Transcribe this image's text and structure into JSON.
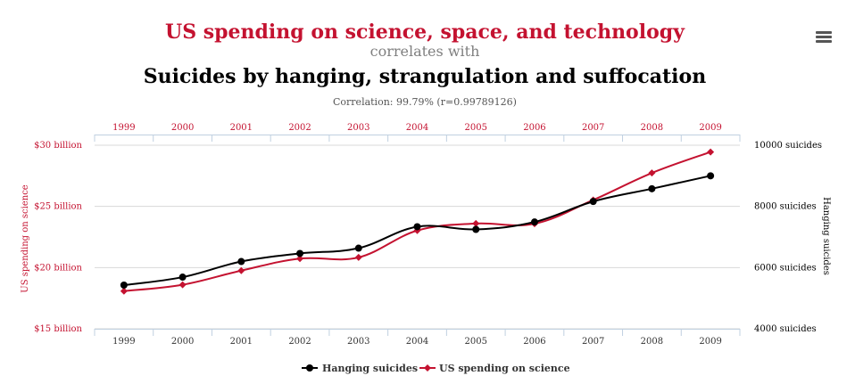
{
  "chart_data": {
    "type": "line",
    "title": "US spending on science, space, and technology",
    "subtitle": "correlates with",
    "title2": "Suicides by hanging, strangulation and suffocation",
    "correlation": "Correlation: 99.79% (r=0.99789126)",
    "categories": [
      "1999",
      "2000",
      "2001",
      "2002",
      "2003",
      "2004",
      "2005",
      "2006",
      "2007",
      "2008",
      "2009"
    ],
    "y_left": {
      "label": "US spending on science",
      "range": [
        15,
        30
      ],
      "ticks": [
        15,
        20,
        25,
        30
      ],
      "tick_labels": [
        "$15 billion",
        "$20 billion",
        "$25 billion",
        "$30 billion"
      ]
    },
    "y_right": {
      "label": "Hanging suicides",
      "range": [
        4000,
        10000
      ],
      "ticks": [
        4000,
        6000,
        8000,
        10000
      ],
      "tick_labels": [
        "4000 suicides",
        "6000 suicides",
        "8000 suicides",
        "10000 suicides"
      ]
    },
    "series": [
      {
        "name": "Hanging suicides",
        "axis": "right",
        "color": "#000000",
        "marker": "circle",
        "values": [
          5427,
          5688,
          6198,
          6462,
          6635,
          7336,
          7248,
          7491,
          8161,
          8578,
          9000
        ]
      },
      {
        "name": "US spending on science",
        "axis": "left",
        "color": "#c41230",
        "marker": "diamond",
        "values": [
          18.079,
          18.594,
          19.753,
          20.734,
          20.831,
          23.029,
          23.597,
          23.584,
          25.525,
          27.731,
          29.449
        ]
      }
    ],
    "legend_position": "bottom-center"
  },
  "colors": {
    "accent": "#c41230",
    "black": "#000000",
    "grid": "#d8d8d8",
    "axis": "#c0d0e0"
  },
  "menu_icon": "hamburger-menu-icon"
}
